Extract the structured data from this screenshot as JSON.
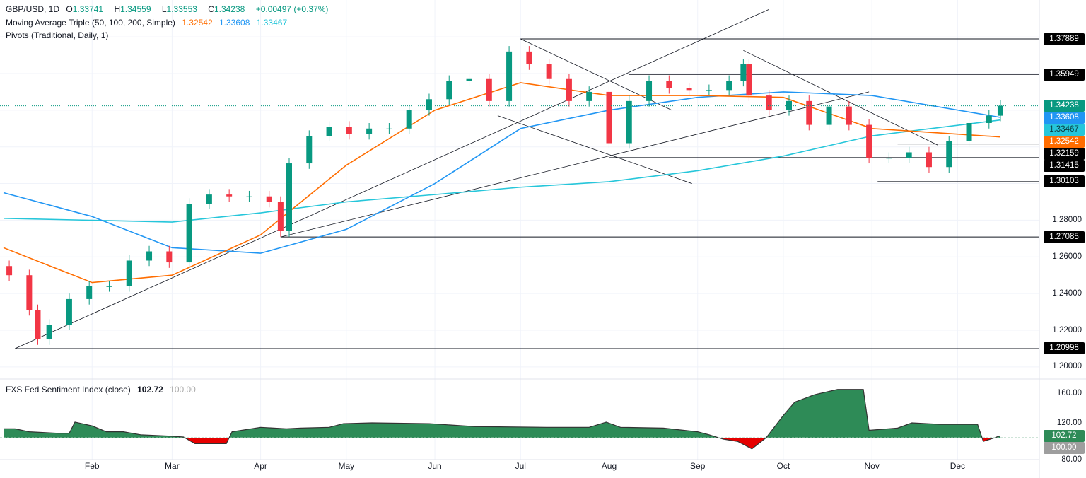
{
  "header": {
    "symbol": "GBP/USD, 1D",
    "o_label": "O",
    "o": "1.33741",
    "h_label": "H",
    "h": "1.34559",
    "l_label": "L",
    "l": "1.33553",
    "c_label": "C",
    "c": "1.34238",
    "change": "+0.00497 (+0.37%)",
    "ma_title": "Moving Average Triple (50, 100, 200, Simple)",
    "ma50": "1.32542",
    "ma100": "1.33608",
    "ma200": "1.33467",
    "pivots_title": "Pivots (Traditional, Daily, 1)"
  },
  "sentiment": {
    "title": "FXS Fed Sentiment Index (close)",
    "value": "102.72",
    "baseline": "100.00"
  },
  "colors": {
    "up": "#089981",
    "down": "#f23645",
    "ma50": "#ff6d00",
    "ma100": "#2196f3",
    "ma200": "#26c6da",
    "area_pos": "#2e8b57",
    "area_neg": "#e60000"
  },
  "chart_data": {
    "type": "candlestick",
    "ylim": [
      1.195,
      1.39
    ],
    "price_ticks": [
      "1.28000",
      "1.26000",
      "1.24000",
      "1.22000",
      "1.20000"
    ],
    "x_labels": [
      "Feb",
      "Mar",
      "Apr",
      "May",
      "Jun",
      "Jul",
      "Aug",
      "Sep",
      "Oct",
      "Nov",
      "Dec"
    ],
    "weekly_closes": [
      [
        "01-03",
        1.25
      ],
      [
        "01-10",
        1.231
      ],
      [
        "01-13",
        1.215
      ],
      [
        "01-17",
        1.223
      ],
      [
        "01-24",
        1.237
      ],
      [
        "01-31",
        1.244
      ],
      [
        "02-07",
        1.244
      ],
      [
        "02-14",
        1.258
      ],
      [
        "02-21",
        1.263
      ],
      [
        "02-28",
        1.257
      ],
      [
        "03-07",
        1.289
      ],
      [
        "03-14",
        1.294
      ],
      [
        "03-21",
        1.293
      ],
      [
        "03-28",
        1.293
      ],
      [
        "04-04",
        1.29
      ],
      [
        "04-08",
        1.274
      ],
      [
        "04-11",
        1.311
      ],
      [
        "04-18",
        1.326
      ],
      [
        "04-25",
        1.331
      ],
      [
        "05-02",
        1.327
      ],
      [
        "05-09",
        1.33
      ],
      [
        "05-16",
        1.33
      ],
      [
        "05-23",
        1.34
      ],
      [
        "05-30",
        1.346
      ],
      [
        "06-06",
        1.356
      ],
      [
        "06-13",
        1.357
      ],
      [
        "06-20",
        1.345
      ],
      [
        "06-27",
        1.372
      ],
      [
        "07-04",
        1.365
      ],
      [
        "07-11",
        1.357
      ],
      [
        "07-18",
        1.345
      ],
      [
        "07-25",
        1.35
      ],
      [
        "08-01",
        1.322
      ],
      [
        "08-08",
        1.345
      ],
      [
        "08-15",
        1.356
      ],
      [
        "08-22",
        1.352
      ],
      [
        "08-29",
        1.351
      ],
      [
        "09-05",
        1.351
      ],
      [
        "09-12",
        1.356
      ],
      [
        "09-17",
        1.365
      ],
      [
        "09-19",
        1.348
      ],
      [
        "09-26",
        1.34
      ],
      [
        "10-03",
        1.345
      ],
      [
        "10-10",
        1.332
      ],
      [
        "10-17",
        1.342
      ],
      [
        "10-24",
        1.332
      ],
      [
        "10-31",
        1.314
      ],
      [
        "11-07",
        1.314
      ],
      [
        "11-14",
        1.317
      ],
      [
        "11-21",
        1.309
      ],
      [
        "11-28",
        1.323
      ],
      [
        "12-05",
        1.333
      ],
      [
        "12-12",
        1.337
      ],
      [
        "12-16",
        1.34238
      ]
    ],
    "ma50": [
      [
        "01-01",
        1.265
      ],
      [
        "02-01",
        1.246
      ],
      [
        "03-01",
        1.25
      ],
      [
        "04-01",
        1.272
      ],
      [
        "05-01",
        1.31
      ],
      [
        "06-01",
        1.34
      ],
      [
        "07-01",
        1.355
      ],
      [
        "08-01",
        1.348
      ],
      [
        "09-01",
        1.348
      ],
      [
        "10-01",
        1.347
      ],
      [
        "11-01",
        1.33
      ],
      [
        "12-16",
        1.32542
      ]
    ],
    "ma100": [
      [
        "01-01",
        1.295
      ],
      [
        "02-01",
        1.282
      ],
      [
        "03-01",
        1.265
      ],
      [
        "04-01",
        1.262
      ],
      [
        "05-01",
        1.275
      ],
      [
        "06-01",
        1.3
      ],
      [
        "07-01",
        1.33
      ],
      [
        "08-01",
        1.34
      ],
      [
        "09-01",
        1.347
      ],
      [
        "10-01",
        1.35
      ],
      [
        "11-01",
        1.348
      ],
      [
        "12-16",
        1.33608
      ]
    ],
    "ma200": [
      [
        "01-01",
        1.281
      ],
      [
        "03-01",
        1.279
      ],
      [
        "04-01",
        1.284
      ],
      [
        "05-01",
        1.29
      ],
      [
        "06-01",
        1.294
      ],
      [
        "07-01",
        1.298
      ],
      [
        "08-01",
        1.301
      ],
      [
        "09-01",
        1.307
      ],
      [
        "10-01",
        1.315
      ],
      [
        "11-01",
        1.326
      ],
      [
        "12-16",
        1.33467
      ]
    ],
    "last_price": "1.34238",
    "levels": [
      {
        "label": "1.37889",
        "from": "07-01",
        "price": 1.37889
      },
      {
        "label": "1.35949",
        "from": "08-08",
        "price": 1.35949
      },
      {
        "label": "1.32159",
        "from": "11-10",
        "price": 1.32159
      },
      {
        "label": "1.31415",
        "from": "08-01",
        "price": 1.31415
      },
      {
        "label": "1.30103",
        "from": "11-03",
        "price": 1.30103
      },
      {
        "label": "1.27085",
        "from": "04-08",
        "price": 1.27085
      },
      {
        "label": "1.20998",
        "from": "01-05",
        "price": 1.20998
      }
    ],
    "trendlines": [
      [
        [
          "01-05",
          1.20998
        ],
        [
          "09-26",
          1.395
        ]
      ],
      [
        [
          "04-08",
          1.27085
        ],
        [
          "10-31",
          1.35
        ]
      ],
      [
        [
          "07-01",
          1.37889
        ],
        [
          "08-23",
          1.34
        ]
      ],
      [
        [
          "06-23",
          1.337
        ],
        [
          "08-30",
          1.3
        ]
      ],
      [
        [
          "09-17",
          1.3726
        ],
        [
          "11-24",
          1.321
        ]
      ]
    ],
    "sentiment_ylim": [
      75,
      170
    ],
    "sentiment_ticks": [
      "160.00",
      "120.00",
      "80.00"
    ],
    "sentiment_series": [
      [
        "01-01",
        112
      ],
      [
        "01-05",
        112
      ],
      [
        "01-10",
        108
      ],
      [
        "01-20",
        106
      ],
      [
        "01-24",
        106
      ],
      [
        "01-26",
        121
      ],
      [
        "02-01",
        116
      ],
      [
        "02-06",
        108
      ],
      [
        "02-12",
        108
      ],
      [
        "02-18",
        104
      ],
      [
        "03-01",
        102
      ],
      [
        "03-05",
        101
      ],
      [
        "03-09",
        92
      ],
      [
        "03-20",
        92
      ],
      [
        "03-22",
        108
      ],
      [
        "04-01",
        114
      ],
      [
        "04-10",
        112
      ],
      [
        "04-15",
        113
      ],
      [
        "04-25",
        114
      ],
      [
        "04-30",
        119
      ],
      [
        "05-10",
        120
      ],
      [
        "05-30",
        119
      ],
      [
        "06-15",
        115
      ],
      [
        "07-10",
        114
      ],
      [
        "07-25",
        114
      ],
      [
        "07-31",
        121
      ],
      [
        "08-05",
        114
      ],
      [
        "08-20",
        113
      ],
      [
        "09-01",
        108
      ],
      [
        "09-05",
        104
      ],
      [
        "09-10",
        98
      ],
      [
        "09-15",
        95
      ],
      [
        "09-20",
        85
      ],
      [
        "09-25",
        100
      ],
      [
        "10-01",
        130
      ],
      [
        "10-05",
        148
      ],
      [
        "10-12",
        158
      ],
      [
        "10-20",
        165
      ],
      [
        "10-29",
        165
      ],
      [
        "10-31",
        110
      ],
      [
        "11-10",
        113
      ],
      [
        "11-15",
        120
      ],
      [
        "11-25",
        118
      ],
      [
        "12-08",
        118
      ],
      [
        "12-10",
        95
      ],
      [
        "12-14",
        100
      ],
      [
        "12-16",
        102.72
      ]
    ]
  }
}
